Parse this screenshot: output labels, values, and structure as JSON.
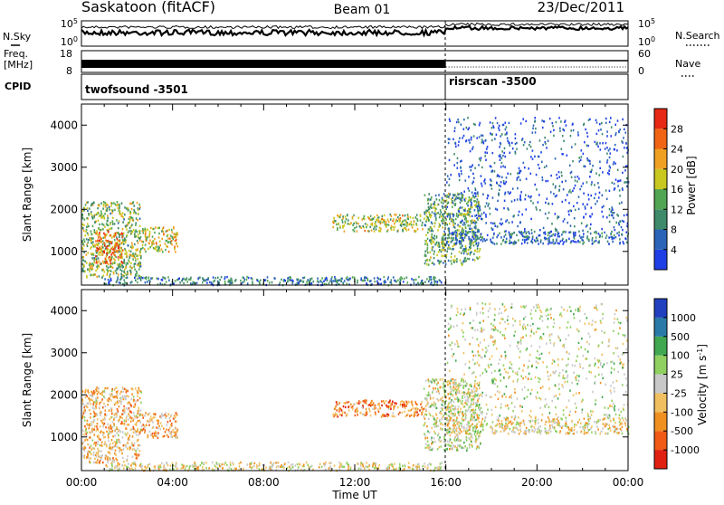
{
  "header": {
    "site": "Saskatoon (fitACF)",
    "beam": "Beam 01",
    "date": "23/Dec/2011"
  },
  "top_panels": {
    "nsky_label": "N.Sky",
    "nsky_ticks": [
      "10^5",
      "10^0"
    ],
    "nsearch_label": "N.Search",
    "nsearch_ticks": [
      "10^5",
      "10^0"
    ],
    "freq_label_1": "Freq.",
    "freq_label_2": "[MHz]",
    "freq_ticks": [
      "18",
      "8"
    ],
    "nave_label": "Nave",
    "nave_ticks": [
      "60",
      "0"
    ],
    "cpid_label": "CPID",
    "cpid_segments": [
      {
        "name": "twofsound -3501",
        "start_hour": 0,
        "end_hour": 16
      },
      {
        "name": "risrscan -3500",
        "start_hour": 16,
        "end_hour": 24
      }
    ]
  },
  "colors": {
    "power_scale": [
      "#1f3fe6",
      "#2a63b8",
      "#3e8a6a",
      "#52a552",
      "#c8c820",
      "#f0a020",
      "#f06414",
      "#e62814"
    ],
    "velocity_scale": [
      "#2040c0",
      "#2a7aa8",
      "#40a850",
      "#90d060",
      "#c8c8c8",
      "#f0c060",
      "#f09020",
      "#f05a14",
      "#e02010"
    ]
  },
  "chart_data": [
    {
      "type": "heatmap",
      "title": "",
      "xlabel": "",
      "ylabel": "Slant Range [km]",
      "xlim": [
        "00:00",
        "00:00"
      ],
      "ylim": [
        200,
        4500
      ],
      "x_ticks": [
        "00:00",
        "04:00",
        "08:00",
        "12:00",
        "16:00",
        "20:00",
        "00:00"
      ],
      "y_ticks": [
        1000,
        2000,
        3000,
        4000
      ],
      "colorbar_label": "Power [dB]",
      "colorbar_ticks": [
        4,
        8,
        12,
        16,
        20,
        24,
        28
      ],
      "colorbar_range": [
        0,
        30
      ],
      "regions": [
        {
          "start_hour": 0.0,
          "end_hour": 2.6,
          "range_min_km": 400,
          "range_max_km": 2200,
          "power_db": 14
        },
        {
          "start_hour": 0.6,
          "end_hour": 1.8,
          "range_min_km": 700,
          "range_max_km": 1500,
          "power_db": 24
        },
        {
          "start_hour": 2.6,
          "end_hour": 4.2,
          "range_min_km": 1000,
          "range_max_km": 1600,
          "power_db": 18
        },
        {
          "start_hour": 1.0,
          "end_hour": 15.8,
          "range_min_km": 220,
          "range_max_km": 420,
          "power_db": 8
        },
        {
          "start_hour": 11.0,
          "end_hour": 15.0,
          "range_min_km": 1500,
          "range_max_km": 1900,
          "power_db": 16
        },
        {
          "start_hour": 15.0,
          "end_hour": 17.5,
          "range_min_km": 700,
          "range_max_km": 2400,
          "power_db": 12
        },
        {
          "start_hour": 16.0,
          "end_hour": 24.0,
          "range_min_km": 1200,
          "range_max_km": 1500,
          "power_db": 6
        },
        {
          "start_hour": 16.0,
          "end_hour": 24.0,
          "range_min_km": 1500,
          "range_max_km": 4200,
          "power_db": 4
        }
      ]
    },
    {
      "type": "heatmap",
      "title": "",
      "xlabel": "Time UT",
      "ylabel": "Slant Range [km]",
      "xlim": [
        "00:00",
        "00:00"
      ],
      "ylim": [
        200,
        4500
      ],
      "x_ticks": [
        "00:00",
        "04:00",
        "08:00",
        "12:00",
        "16:00",
        "20:00",
        "00:00"
      ],
      "y_ticks": [
        1000,
        2000,
        3000,
        4000
      ],
      "colorbar_label": "Velocity [m s^-1]",
      "colorbar_ticks": [
        1000,
        500,
        100,
        25,
        -25,
        -100,
        -500,
        -1000
      ],
      "colorbar_range": [
        -1000,
        1000
      ],
      "regions": [
        {
          "start_hour": 0.0,
          "end_hour": 2.6,
          "range_min_km": 400,
          "range_max_km": 2200,
          "velocity": -150
        },
        {
          "start_hour": 2.6,
          "end_hour": 4.2,
          "range_min_km": 1000,
          "range_max_km": 1600,
          "velocity": -200
        },
        {
          "start_hour": 1.0,
          "end_hour": 15.8,
          "range_min_km": 220,
          "range_max_km": 420,
          "velocity": -50
        },
        {
          "start_hour": 11.0,
          "end_hour": 15.0,
          "range_min_km": 1500,
          "range_max_km": 1900,
          "velocity": -300
        },
        {
          "start_hour": 15.0,
          "end_hour": 17.5,
          "range_min_km": 700,
          "range_max_km": 2400,
          "velocity": 0
        },
        {
          "start_hour": 16.0,
          "end_hour": 24.0,
          "range_min_km": 1100,
          "range_max_km": 1500,
          "velocity": -60
        },
        {
          "start_hour": 16.0,
          "end_hour": 24.0,
          "range_min_km": 1500,
          "range_max_km": 4200,
          "velocity": 20
        }
      ]
    }
  ]
}
